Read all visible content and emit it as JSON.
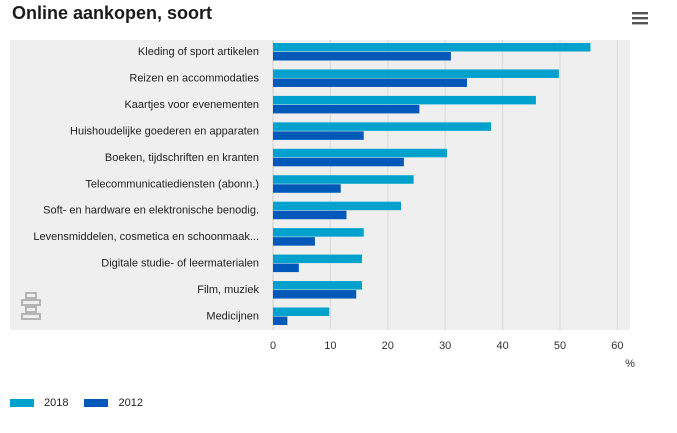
{
  "header": {
    "title": "Online aankopen, soort",
    "menu_icon": "hamburger-menu-icon"
  },
  "colors": {
    "series_2018": "#00a1cd",
    "series_2012": "#0058b8",
    "plot_background": "#efefef",
    "grid": "#d9d9d9"
  },
  "logo": {
    "icon": "cbs-logo-icon"
  },
  "chart_data": {
    "type": "bar",
    "orientation": "horizontal",
    "title": "Online aankopen, soort",
    "xlabel": "%",
    "xlim": [
      0,
      60
    ],
    "xticks": [
      0,
      10,
      20,
      30,
      40,
      50,
      60
    ],
    "grid": true,
    "legend_position": "bottom-left",
    "categories": [
      "Kleding of sport artikelen",
      "Reizen en accommodaties",
      "Kaartjes voor evenementen",
      "Huishoudelijke goederen en apparaten",
      "Boeken, tijdschriften en kranten",
      "Telecommunicatiediensten (abonn.)",
      "Soft- en hardware en elektronische benodig.",
      "Levensmiddelen, cosmetica en schoonmaak...",
      "Digitale studie- of leermaterialen",
      "Film, muziek",
      "Medicijnen"
    ],
    "series": [
      {
        "name": "2018",
        "values": [
          55.3,
          49.8,
          45.8,
          38.0,
          30.3,
          24.5,
          22.3,
          15.8,
          15.5,
          15.5,
          9.8
        ]
      },
      {
        "name": "2012",
        "values": [
          31.0,
          33.8,
          25.5,
          15.8,
          22.8,
          11.8,
          12.8,
          7.3,
          4.5,
          14.5,
          2.5
        ]
      }
    ]
  }
}
